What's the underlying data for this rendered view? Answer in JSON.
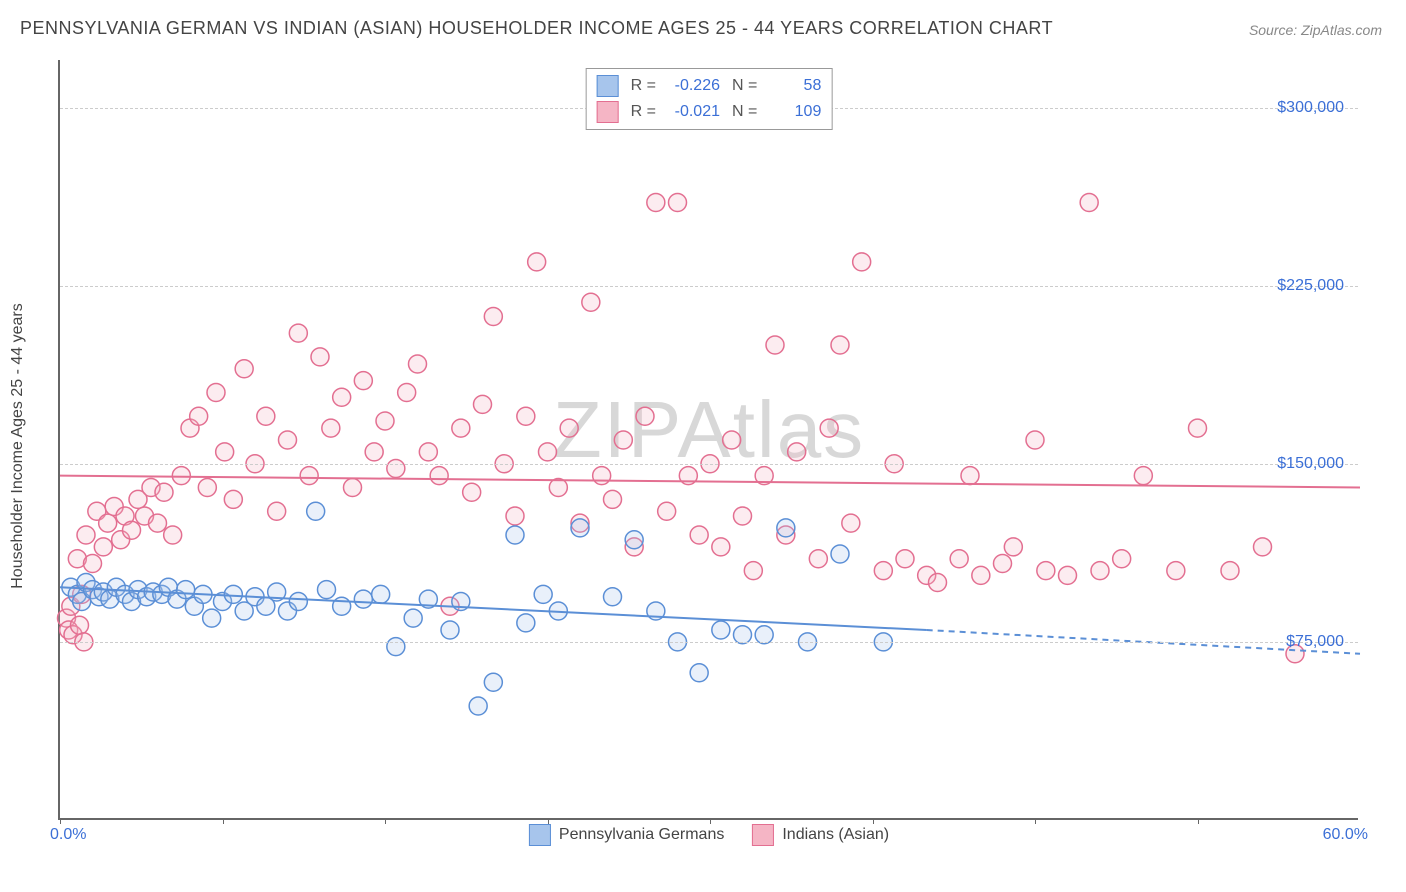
{
  "title": "PENNSYLVANIA GERMAN VS INDIAN (ASIAN) HOUSEHOLDER INCOME AGES 25 - 44 YEARS CORRELATION CHART",
  "source": "Source: ZipAtlas.com",
  "watermark": "ZIPAtlas",
  "yaxis_label": "Householder Income Ages 25 - 44 years",
  "chart": {
    "type": "scatter",
    "background_color": "#ffffff",
    "grid_color": "#cccccc",
    "axis_color": "#666666",
    "title_fontsize": 18,
    "label_fontsize": 16,
    "tick_fontsize": 16,
    "tick_color": "#3b6fd6",
    "xlim": [
      0,
      60
    ],
    "ylim": [
      0,
      320000
    ],
    "x_start_label": "0.0%",
    "x_end_label": "60.0%",
    "ytick_values": [
      75000,
      150000,
      225000,
      300000
    ],
    "ytick_labels": [
      "$75,000",
      "$150,000",
      "$225,000",
      "$300,000"
    ],
    "xtick_positions": [
      0,
      7.5,
      15,
      22.5,
      30,
      37.5,
      45,
      52.5
    ],
    "marker_radius": 9,
    "marker_fill_opacity": 0.25,
    "marker_stroke_width": 1.5,
    "trend_line_width": 2
  },
  "series": [
    {
      "name": "Pennsylvania Germans",
      "color": "#5b8fd6",
      "fill": "#a7c5ec",
      "R": "-0.226",
      "N": "58",
      "trend": {
        "x1": 0,
        "y1": 98000,
        "x2": 40,
        "y2": 80000,
        "solid_until_x": 40,
        "dash_to_x": 60,
        "dash_y2": 70000
      },
      "points": [
        [
          0.5,
          98000
        ],
        [
          0.8,
          95000
        ],
        [
          1.0,
          92000
        ],
        [
          1.2,
          100000
        ],
        [
          1.5,
          97000
        ],
        [
          1.8,
          94000
        ],
        [
          2.0,
          96000
        ],
        [
          2.3,
          93000
        ],
        [
          2.6,
          98000
        ],
        [
          3.0,
          95000
        ],
        [
          3.3,
          92000
        ],
        [
          3.6,
          97000
        ],
        [
          4.0,
          94000
        ],
        [
          4.3,
          96000
        ],
        [
          4.7,
          95000
        ],
        [
          5.0,
          98000
        ],
        [
          5.4,
          93000
        ],
        [
          5.8,
          97000
        ],
        [
          6.2,
          90000
        ],
        [
          6.6,
          95000
        ],
        [
          7.0,
          85000
        ],
        [
          7.5,
          92000
        ],
        [
          8.0,
          95000
        ],
        [
          8.5,
          88000
        ],
        [
          9.0,
          94000
        ],
        [
          9.5,
          90000
        ],
        [
          10.0,
          96000
        ],
        [
          10.5,
          88000
        ],
        [
          11.0,
          92000
        ],
        [
          11.8,
          130000
        ],
        [
          12.3,
          97000
        ],
        [
          13.0,
          90000
        ],
        [
          14.0,
          93000
        ],
        [
          14.8,
          95000
        ],
        [
          15.5,
          73000
        ],
        [
          16.3,
          85000
        ],
        [
          17.0,
          93000
        ],
        [
          18.0,
          80000
        ],
        [
          18.5,
          92000
        ],
        [
          19.3,
          48000
        ],
        [
          20.0,
          58000
        ],
        [
          21.0,
          120000
        ],
        [
          21.5,
          83000
        ],
        [
          22.3,
          95000
        ],
        [
          23.0,
          88000
        ],
        [
          24.0,
          123000
        ],
        [
          25.5,
          94000
        ],
        [
          26.5,
          118000
        ],
        [
          27.5,
          88000
        ],
        [
          28.5,
          75000
        ],
        [
          29.5,
          62000
        ],
        [
          30.5,
          80000
        ],
        [
          31.5,
          78000
        ],
        [
          32.5,
          78000
        ],
        [
          33.5,
          123000
        ],
        [
          34.5,
          75000
        ],
        [
          36.0,
          112000
        ],
        [
          38.0,
          75000
        ]
      ]
    },
    {
      "name": "Indians (Asian)",
      "color": "#e36f91",
      "fill": "#f5b5c5",
      "R": "-0.021",
      "N": "109",
      "trend": {
        "x1": 0,
        "y1": 145000,
        "x2": 60,
        "y2": 140000,
        "solid_until_x": 60
      },
      "points": [
        [
          0.3,
          85000
        ],
        [
          0.5,
          90000
        ],
        [
          0.8,
          110000
        ],
        [
          1.0,
          95000
        ],
        [
          1.2,
          120000
        ],
        [
          1.5,
          108000
        ],
        [
          1.7,
          130000
        ],
        [
          2.0,
          115000
        ],
        [
          2.2,
          125000
        ],
        [
          2.5,
          132000
        ],
        [
          2.8,
          118000
        ],
        [
          3.0,
          128000
        ],
        [
          3.3,
          122000
        ],
        [
          3.6,
          135000
        ],
        [
          3.9,
          128000
        ],
        [
          4.2,
          140000
        ],
        [
          4.5,
          125000
        ],
        [
          4.8,
          138000
        ],
        [
          5.2,
          120000
        ],
        [
          5.6,
          145000
        ],
        [
          6.0,
          165000
        ],
        [
          6.4,
          170000
        ],
        [
          6.8,
          140000
        ],
        [
          7.2,
          180000
        ],
        [
          7.6,
          155000
        ],
        [
          8.0,
          135000
        ],
        [
          8.5,
          190000
        ],
        [
          9.0,
          150000
        ],
        [
          9.5,
          170000
        ],
        [
          10.0,
          130000
        ],
        [
          10.5,
          160000
        ],
        [
          11.0,
          205000
        ],
        [
          11.5,
          145000
        ],
        [
          12.0,
          195000
        ],
        [
          12.5,
          165000
        ],
        [
          13.0,
          178000
        ],
        [
          13.5,
          140000
        ],
        [
          14.0,
          185000
        ],
        [
          14.5,
          155000
        ],
        [
          15.0,
          168000
        ],
        [
          15.5,
          148000
        ],
        [
          16.0,
          180000
        ],
        [
          16.5,
          192000
        ],
        [
          17.0,
          155000
        ],
        [
          17.5,
          145000
        ],
        [
          18.0,
          90000
        ],
        [
          18.5,
          165000
        ],
        [
          19.0,
          138000
        ],
        [
          19.5,
          175000
        ],
        [
          20.0,
          212000
        ],
        [
          20.5,
          150000
        ],
        [
          21.0,
          128000
        ],
        [
          21.5,
          170000
        ],
        [
          22.0,
          235000
        ],
        [
          22.5,
          155000
        ],
        [
          23.0,
          140000
        ],
        [
          23.5,
          165000
        ],
        [
          24.0,
          125000
        ],
        [
          24.5,
          218000
        ],
        [
          25.0,
          145000
        ],
        [
          25.5,
          135000
        ],
        [
          26.0,
          160000
        ],
        [
          26.5,
          115000
        ],
        [
          27.0,
          170000
        ],
        [
          27.5,
          260000
        ],
        [
          28.0,
          130000
        ],
        [
          28.5,
          260000
        ],
        [
          29.0,
          145000
        ],
        [
          29.5,
          120000
        ],
        [
          30.0,
          150000
        ],
        [
          30.5,
          115000
        ],
        [
          31.0,
          160000
        ],
        [
          31.5,
          128000
        ],
        [
          32.0,
          105000
        ],
        [
          32.5,
          145000
        ],
        [
          33.0,
          200000
        ],
        [
          33.5,
          120000
        ],
        [
          34.0,
          155000
        ],
        [
          35.0,
          110000
        ],
        [
          35.5,
          165000
        ],
        [
          36.0,
          200000
        ],
        [
          36.5,
          125000
        ],
        [
          37.0,
          235000
        ],
        [
          38.0,
          105000
        ],
        [
          38.5,
          150000
        ],
        [
          39.0,
          110000
        ],
        [
          40.0,
          103000
        ],
        [
          40.5,
          100000
        ],
        [
          41.5,
          110000
        ],
        [
          42.0,
          145000
        ],
        [
          42.5,
          103000
        ],
        [
          43.5,
          108000
        ],
        [
          44.0,
          115000
        ],
        [
          45.0,
          160000
        ],
        [
          45.5,
          105000
        ],
        [
          46.5,
          103000
        ],
        [
          47.5,
          260000
        ],
        [
          48.0,
          105000
        ],
        [
          49.0,
          110000
        ],
        [
          50.0,
          145000
        ],
        [
          51.5,
          105000
        ],
        [
          52.5,
          165000
        ],
        [
          54.0,
          105000
        ],
        [
          55.5,
          115000
        ],
        [
          57.0,
          70000
        ],
        [
          0.4,
          80000
        ],
        [
          0.6,
          78000
        ],
        [
          0.9,
          82000
        ],
        [
          1.1,
          75000
        ]
      ]
    }
  ],
  "legend_bottom": [
    {
      "label": "Pennsylvania Germans",
      "series": 0
    },
    {
      "label": "Indians (Asian)",
      "series": 1
    }
  ]
}
